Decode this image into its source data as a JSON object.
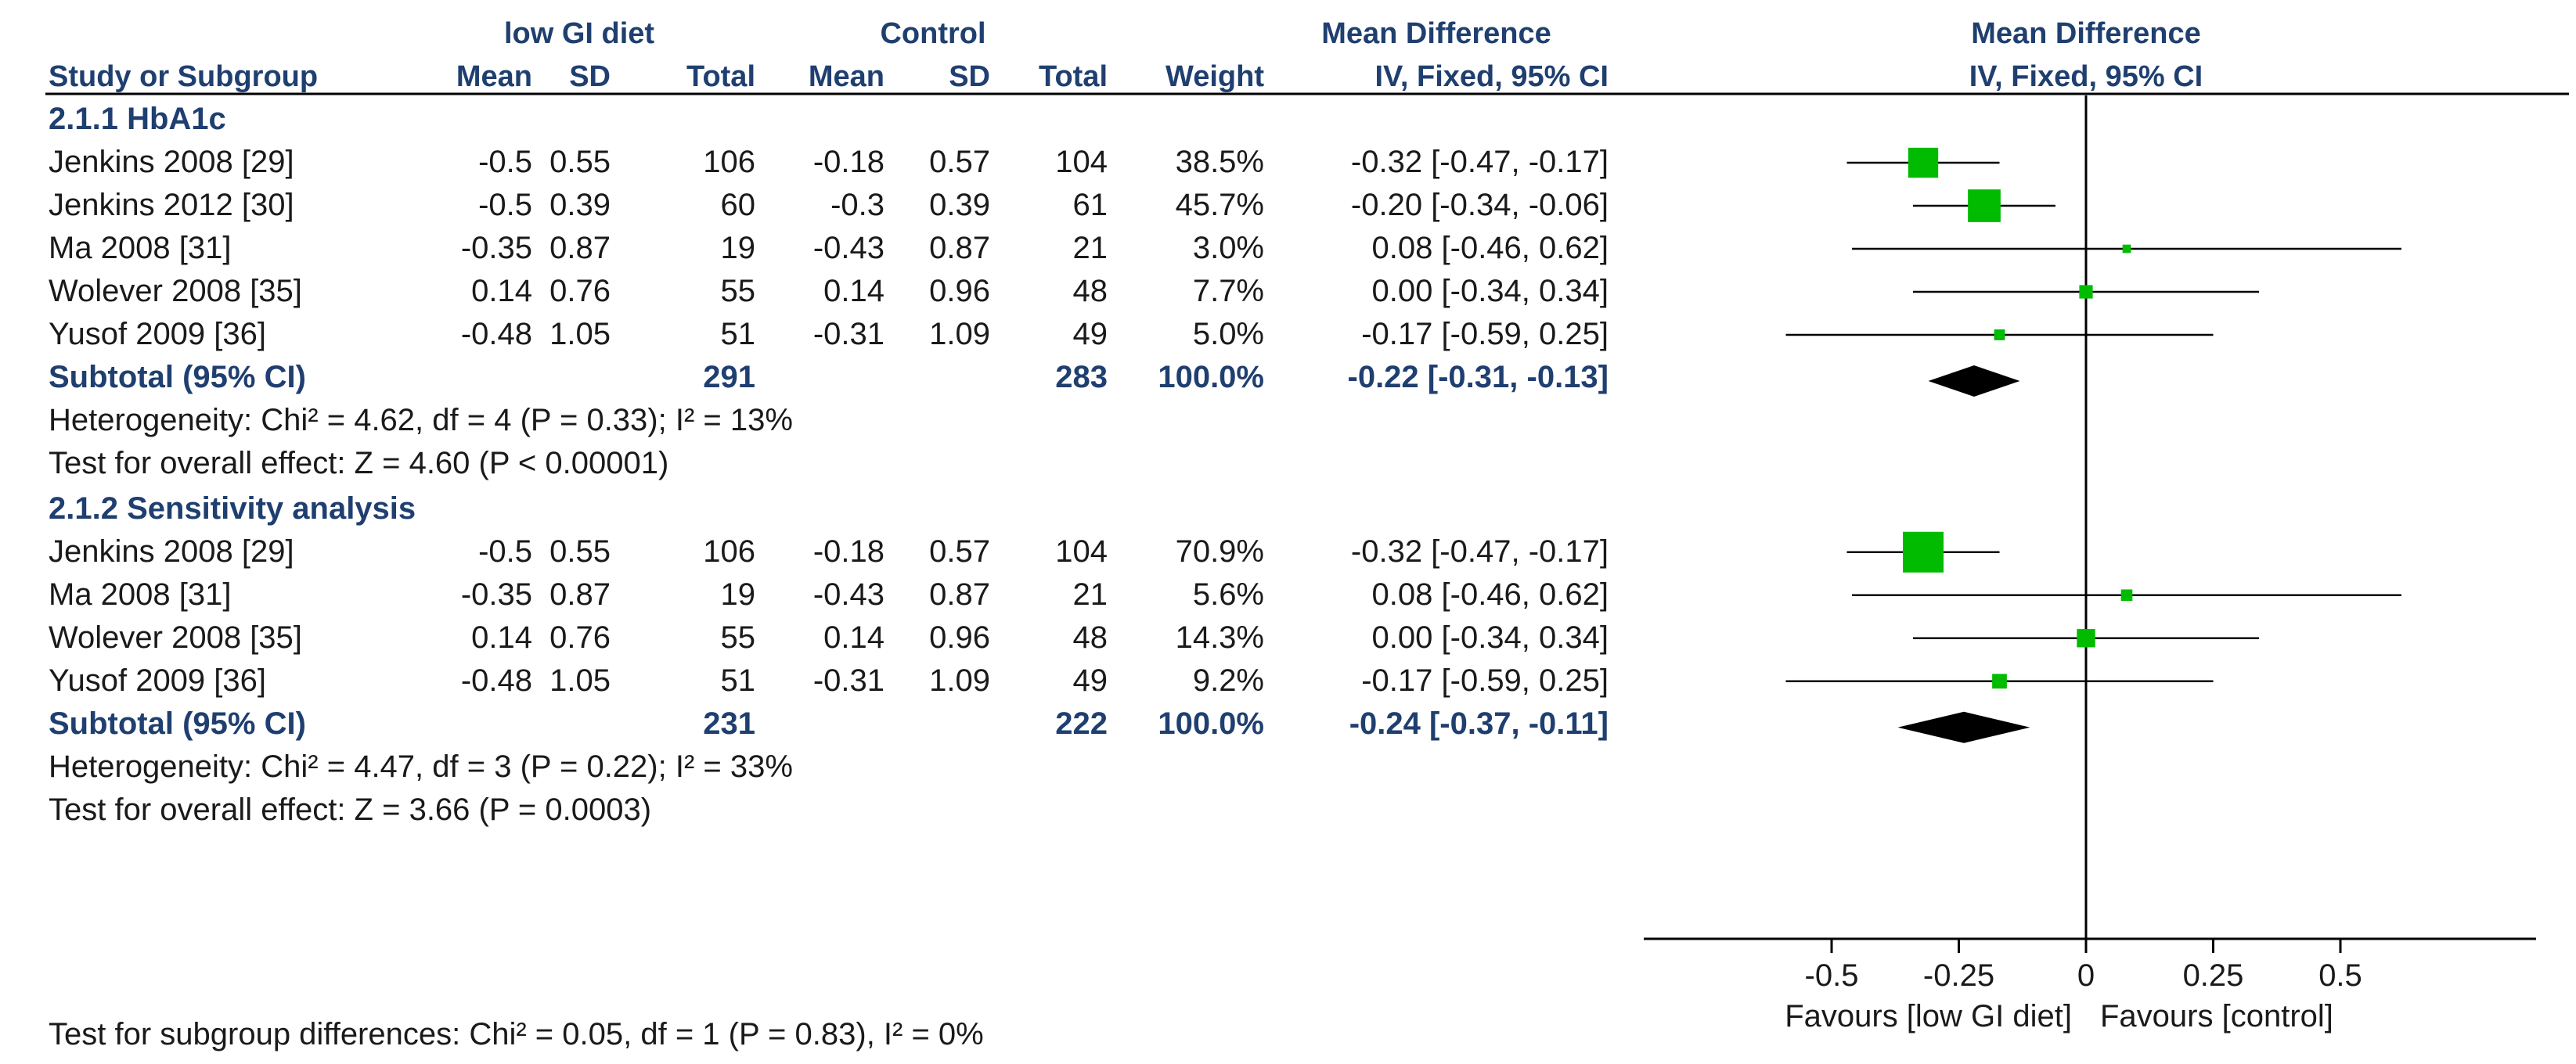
{
  "header": {
    "group1": "low GI diet",
    "group2": "Control",
    "effect_title": "Mean Difference",
    "plot_title": "Mean Difference",
    "columns": [
      "Study or Subgroup",
      "Mean",
      "SD",
      "Total",
      "Mean",
      "SD",
      "Total",
      "Weight",
      "IV, Fixed, 95% CI"
    ],
    "plot_subtitle": "IV, Fixed, 95% CI"
  },
  "chart_data": {
    "type": "forest",
    "xaxis": {
      "ticks": [
        -0.5,
        -0.25,
        0,
        0.25,
        0.5
      ],
      "tick_labels": [
        "-0.5",
        "-0.25",
        "0",
        "0.25",
        "0.5"
      ],
      "xlim": [
        -0.85,
        0.85
      ],
      "label_left": "Favours [low GI diet]",
      "label_right": "Favours [control]"
    },
    "subgroups": [
      {
        "title": "2.1.1 HbA1c",
        "studies": [
          {
            "name": "Jenkins 2008 [29]",
            "m1": "-0.5",
            "sd1": "0.55",
            "n1": "106",
            "m2": "-0.18",
            "sd2": "0.57",
            "n2": "104",
            "weight": "38.5%",
            "ci": "-0.32 [-0.47, -0.17]",
            "est": -0.32,
            "lo": -0.47,
            "hi": -0.17,
            "w": 38.5
          },
          {
            "name": "Jenkins 2012 [30]",
            "m1": "-0.5",
            "sd1": "0.39",
            "n1": "60",
            "m2": "-0.3",
            "sd2": "0.39",
            "n2": "61",
            "weight": "45.7%",
            "ci": "-0.20 [-0.34, -0.06]",
            "est": -0.2,
            "lo": -0.34,
            "hi": -0.06,
            "w": 45.7
          },
          {
            "name": "Ma 2008 [31]",
            "m1": "-0.35",
            "sd1": "0.87",
            "n1": "19",
            "m2": "-0.43",
            "sd2": "0.87",
            "n2": "21",
            "weight": "3.0%",
            "ci": "0.08 [-0.46, 0.62]",
            "est": 0.08,
            "lo": -0.46,
            "hi": 0.62,
            "w": 3.0
          },
          {
            "name": "Wolever 2008 [35]",
            "m1": "0.14",
            "sd1": "0.76",
            "n1": "55",
            "m2": "0.14",
            "sd2": "0.96",
            "n2": "48",
            "weight": "7.7%",
            "ci": "0.00 [-0.34, 0.34]",
            "est": 0.0,
            "lo": -0.34,
            "hi": 0.34,
            "w": 7.7
          },
          {
            "name": "Yusof 2009 [36]",
            "m1": "-0.48",
            "sd1": "1.05",
            "n1": "51",
            "m2": "-0.31",
            "sd2": "1.09",
            "n2": "49",
            "weight": "5.0%",
            "ci": "-0.17 [-0.59, 0.25]",
            "est": -0.17,
            "lo": -0.59,
            "hi": 0.25,
            "w": 5.0
          }
        ],
        "subtotal": {
          "label": "Subtotal (95% CI)",
          "n1": "291",
          "n2": "283",
          "weight": "100.0%",
          "ci": "-0.22 [-0.31, -0.13]",
          "est": -0.22,
          "lo": -0.31,
          "hi": -0.13
        },
        "heterogeneity": "Heterogeneity: Chi² = 4.62, df = 4 (P = 0.33); I² = 13%",
        "overall": "Test for overall effect: Z = 4.60 (P < 0.00001)"
      },
      {
        "title": "2.1.2 Sensitivity analysis",
        "studies": [
          {
            "name": "Jenkins 2008 [29]",
            "m1": "-0.5",
            "sd1": "0.55",
            "n1": "106",
            "m2": "-0.18",
            "sd2": "0.57",
            "n2": "104",
            "weight": "70.9%",
            "ci": "-0.32 [-0.47, -0.17]",
            "est": -0.32,
            "lo": -0.47,
            "hi": -0.17,
            "w": 70.9
          },
          {
            "name": "Ma 2008 [31]",
            "m1": "-0.35",
            "sd1": "0.87",
            "n1": "19",
            "m2": "-0.43",
            "sd2": "0.87",
            "n2": "21",
            "weight": "5.6%",
            "ci": "0.08 [-0.46, 0.62]",
            "est": 0.08,
            "lo": -0.46,
            "hi": 0.62,
            "w": 5.6
          },
          {
            "name": "Wolever 2008 [35]",
            "m1": "0.14",
            "sd1": "0.76",
            "n1": "55",
            "m2": "0.14",
            "sd2": "0.96",
            "n2": "48",
            "weight": "14.3%",
            "ci": "0.00 [-0.34, 0.34]",
            "est": 0.0,
            "lo": -0.34,
            "hi": 0.34,
            "w": 14.3
          },
          {
            "name": "Yusof 2009 [36]",
            "m1": "-0.48",
            "sd1": "1.05",
            "n1": "51",
            "m2": "-0.31",
            "sd2": "1.09",
            "n2": "49",
            "weight": "9.2%",
            "ci": "-0.17 [-0.59, 0.25]",
            "est": -0.17,
            "lo": -0.59,
            "hi": 0.25,
            "w": 9.2
          }
        ],
        "subtotal": {
          "label": "Subtotal (95% CI)",
          "n1": "231",
          "n2": "222",
          "weight": "100.0%",
          "ci": "-0.24 [-0.37, -0.11]",
          "est": -0.24,
          "lo": -0.37,
          "hi": -0.11
        },
        "heterogeneity": "Heterogeneity: Chi² = 4.47, df = 3 (P = 0.22); I² = 33%",
        "overall": "Test for overall effect: Z = 3.66 (P = 0.0003)"
      }
    ],
    "subgroup_test": "Test for subgroup differences: Chi² = 0.05, df = 1 (P = 0.83), I² = 0%",
    "colors": {
      "square": "#00bb00",
      "diamond": "#000000",
      "header": "#1f3f70"
    }
  }
}
